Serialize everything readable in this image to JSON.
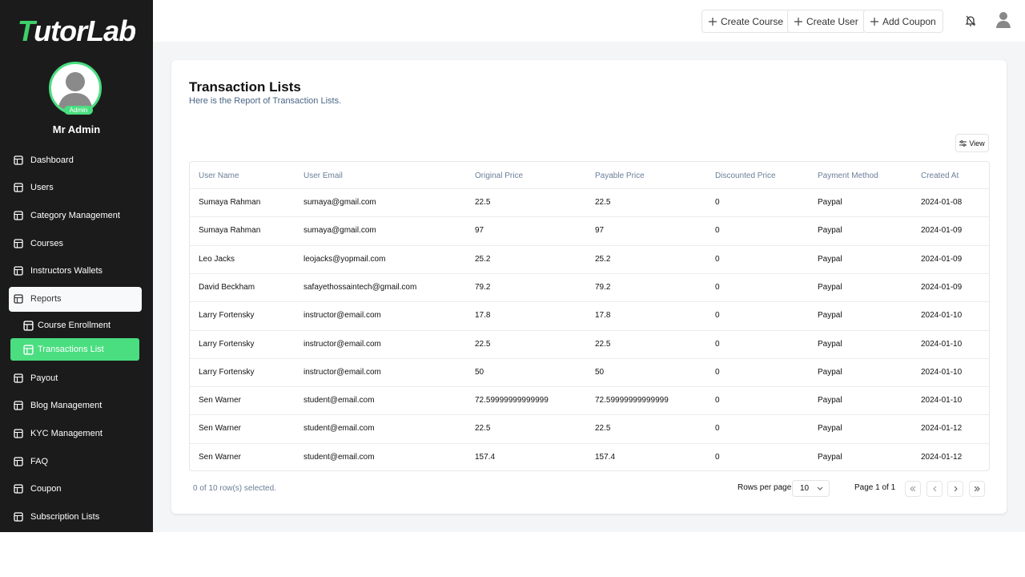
{
  "sidebar": {
    "logo": "TutorLab",
    "avatar_badge": "Admin",
    "user_name": "Mr Admin",
    "nav": [
      {
        "label": "Dashboard"
      },
      {
        "label": "Users"
      },
      {
        "label": "Category Management"
      },
      {
        "label": "Courses"
      },
      {
        "label": "Instructors Wallets"
      },
      {
        "label": "Reports",
        "children": [
          "Course Enrollment",
          "Transactions List"
        ]
      },
      {
        "label": "Payout"
      },
      {
        "label": "Blog Management"
      },
      {
        "label": "KYC Management"
      },
      {
        "label": "FAQ"
      },
      {
        "label": "Coupon"
      },
      {
        "label": "Subscription Lists"
      }
    ]
  },
  "header": {
    "actions": [
      "Create Course",
      "Create User",
      "Add Coupon"
    ]
  },
  "card": {
    "title": "Transaction Lists",
    "subtitle": "Here is the Report of Transaction Lists.",
    "view_button": "View"
  },
  "table": {
    "columns": [
      "User Name",
      "User Email",
      "Original Price",
      "Payable Price",
      "Discounted Price",
      "Payment Method",
      "Created At"
    ],
    "rows": [
      [
        "Sumaya Rahman",
        "sumaya@gmail.com",
        "22.5",
        "22.5",
        "0",
        "Paypal",
        "2024-01-08"
      ],
      [
        "Sumaya Rahman",
        "sumaya@gmail.com",
        "97",
        "97",
        "0",
        "Paypal",
        "2024-01-09"
      ],
      [
        "Leo Jacks",
        "leojacks@yopmail.com",
        "25.2",
        "25.2",
        "0",
        "Paypal",
        "2024-01-09"
      ],
      [
        "David Beckham",
        "safayethossaintech@gmail.com",
        "79.2",
        "79.2",
        "0",
        "Paypal",
        "2024-01-09"
      ],
      [
        "Larry Fortensky",
        "instructor@email.com",
        "17.8",
        "17.8",
        "0",
        "Paypal",
        "2024-01-10"
      ],
      [
        "Larry Fortensky",
        "instructor@email.com",
        "22.5",
        "22.5",
        "0",
        "Paypal",
        "2024-01-10"
      ],
      [
        "Larry Fortensky",
        "instructor@email.com",
        "50",
        "50",
        "0",
        "Paypal",
        "2024-01-10"
      ],
      [
        "Sen Warner",
        "student@email.com",
        "72.59999999999999",
        "72.59999999999999",
        "0",
        "Paypal",
        "2024-01-10"
      ],
      [
        "Sen Warner",
        "student@email.com",
        "22.5",
        "22.5",
        "0",
        "Paypal",
        "2024-01-12"
      ],
      [
        "Sen Warner",
        "student@email.com",
        "157.4",
        "157.4",
        "0",
        "Paypal",
        "2024-01-12"
      ]
    ]
  },
  "footer": {
    "selection": "0 of 10 row(s) selected.",
    "rows_per_page_label": "Rows per page",
    "rows_per_page": "10",
    "page_info": "Page 1 of 1"
  }
}
